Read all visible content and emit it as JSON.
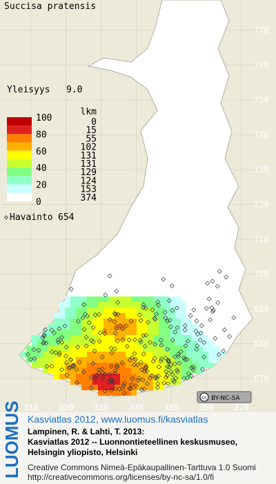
{
  "title": "Succisa pratensis",
  "frequency": {
    "label": "Yleisyys",
    "value": "9.0"
  },
  "legend": {
    "header": "lkm",
    "scale_labels": [
      100,
      80,
      60,
      40,
      20,
      0
    ],
    "colors": [
      "#c00000",
      "#e02020",
      "#ff8000",
      "#ffb000",
      "#ffff00",
      "#c8ff30",
      "#80ff80",
      "#90ffc8",
      "#c8ffff",
      "#ffffff"
    ],
    "counts": [
      0,
      15,
      55,
      102,
      131,
      131,
      129,
      124,
      153,
      374
    ]
  },
  "observations": {
    "label": "Havainto",
    "value": 654
  },
  "map_axes": {
    "yticks": [
      770,
      760,
      750,
      740,
      730,
      720,
      710,
      700,
      690,
      680,
      670
    ],
    "xticks": [
      310,
      320,
      330,
      340,
      350,
      360,
      370
    ]
  },
  "license_badge": "BY-NC-SA",
  "logo": "LUOMUS",
  "footer": {
    "link": "Kasviatlas 2012, www.luomus.fi/kasviatlas",
    "citation": [
      "Lampinen, R. & Lahti, T. 2013:",
      "Kasviatlas 2012 -- Luonnontieteellinen keskusmuseo,",
      "Helsingin yliopisto, Helsinki"
    ],
    "license": [
      "Creative Commons Nimeä-Epäkaupallinen-Tarttuva 1.0 Suomi",
      "http://creativecommons.org/licenses/by-nc-sa/1.0/fi"
    ]
  }
}
